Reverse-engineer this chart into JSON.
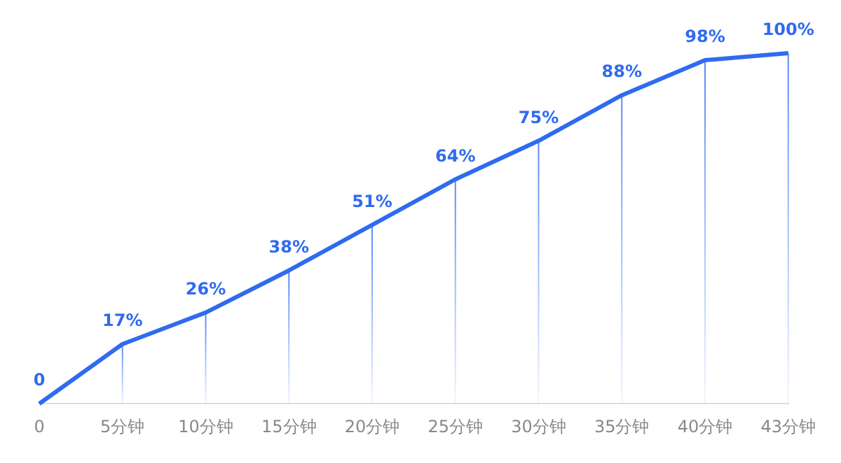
{
  "chart_data": {
    "type": "line",
    "categories": [
      "0",
      "5分钟",
      "10分钟",
      "15分钟",
      "20分钟",
      "25分钟",
      "30分钟",
      "35分钟",
      "40分钟",
      "43分钟"
    ],
    "values": [
      0,
      17,
      26,
      38,
      51,
      64,
      75,
      88,
      98,
      100
    ],
    "value_labels": [
      "0",
      "17%",
      "26%",
      "38%",
      "51%",
      "64%",
      "75%",
      "88%",
      "98%",
      "100%"
    ],
    "color": "#2f6bf0",
    "grid": "x",
    "legend": false,
    "marker": "none",
    "line_style": "solid"
  }
}
